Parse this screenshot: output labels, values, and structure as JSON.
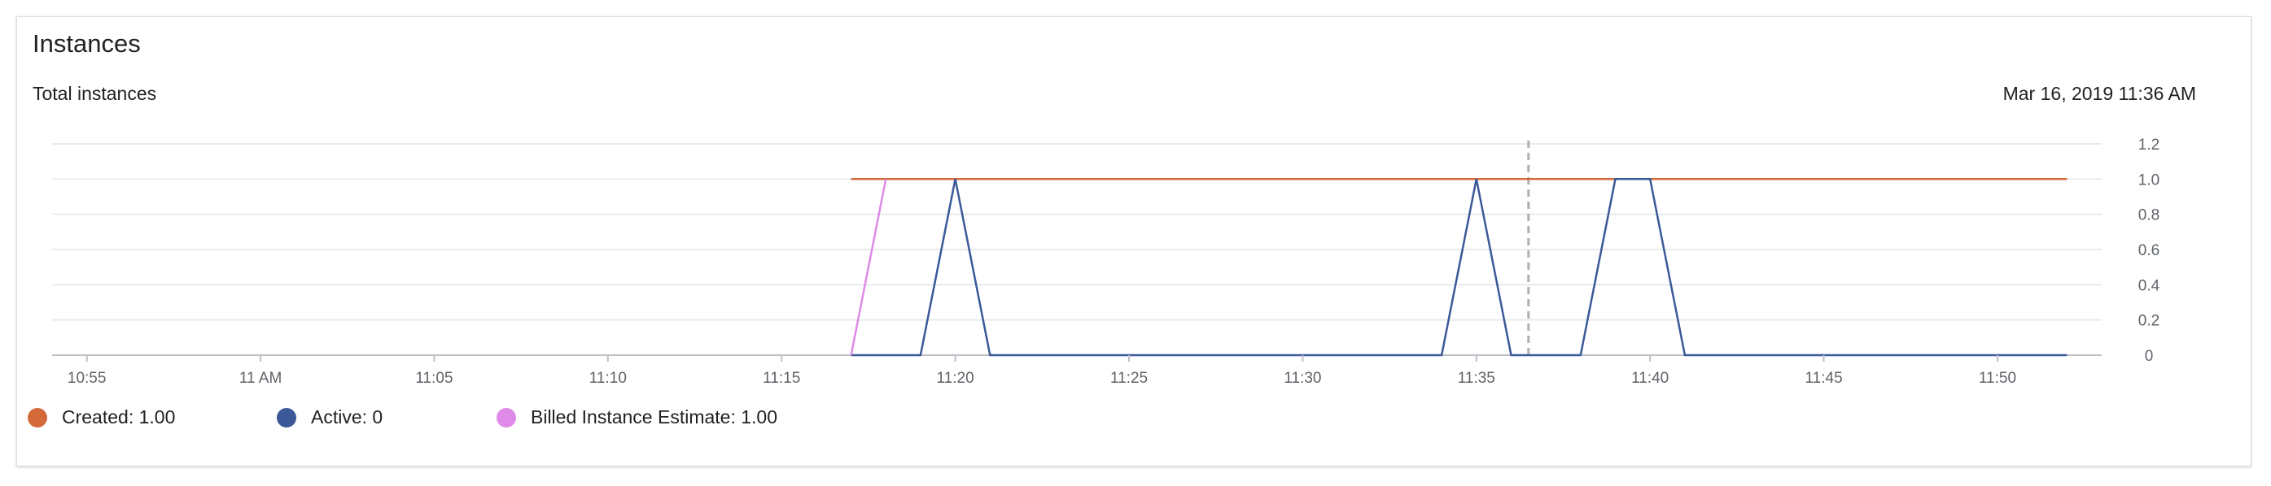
{
  "card": {
    "title": "Instances",
    "subtitle": "Total instances",
    "timestamp": "Mar 16, 2019 11:36 AM"
  },
  "legend": [
    {
      "label": "Created: 1.00",
      "color": "#d4693a"
    },
    {
      "label": "Active: 0",
      "color": "#3b5998"
    },
    {
      "label": "Billed Instance Estimate: 1.00",
      "color": "#df8ae8"
    }
  ],
  "chart_data": {
    "type": "line",
    "title": "Total instances",
    "x_ticks": [
      "10:55",
      "11 AM",
      "11:05",
      "11:10",
      "11:15",
      "11:20",
      "11:25",
      "11:30",
      "11:35",
      "11:40",
      "11:45",
      "11:50"
    ],
    "y_ticks": [
      "1.2",
      "1.0",
      "0.8",
      "0.6",
      "0.4",
      "0.2",
      "0"
    ],
    "ylim": [
      0,
      1.2
    ],
    "xlim": [
      "10:54",
      "11:53"
    ],
    "grid": true,
    "cursor_time": "11:36:30",
    "series": [
      {
        "name": "Created",
        "color": "#d4693a",
        "points": [
          [
            "11:17",
            1
          ],
          [
            "11:52",
            1
          ]
        ]
      },
      {
        "name": "Active",
        "color": "#3b5998",
        "points": [
          [
            "11:17",
            0
          ],
          [
            "11:19",
            0
          ],
          [
            "11:20",
            1
          ],
          [
            "11:21",
            0
          ],
          [
            "11:34",
            0
          ],
          [
            "11:35",
            1
          ],
          [
            "11:36",
            0
          ],
          [
            "11:38",
            0
          ],
          [
            "11:39",
            1
          ],
          [
            "11:40",
            1
          ],
          [
            "11:41",
            0
          ],
          [
            "11:52",
            0
          ]
        ]
      },
      {
        "name": "Billed Instance Estimate",
        "color": "#df8ae8",
        "points": [
          [
            "11:17",
            0
          ],
          [
            "11:18",
            1
          ]
        ]
      }
    ]
  }
}
